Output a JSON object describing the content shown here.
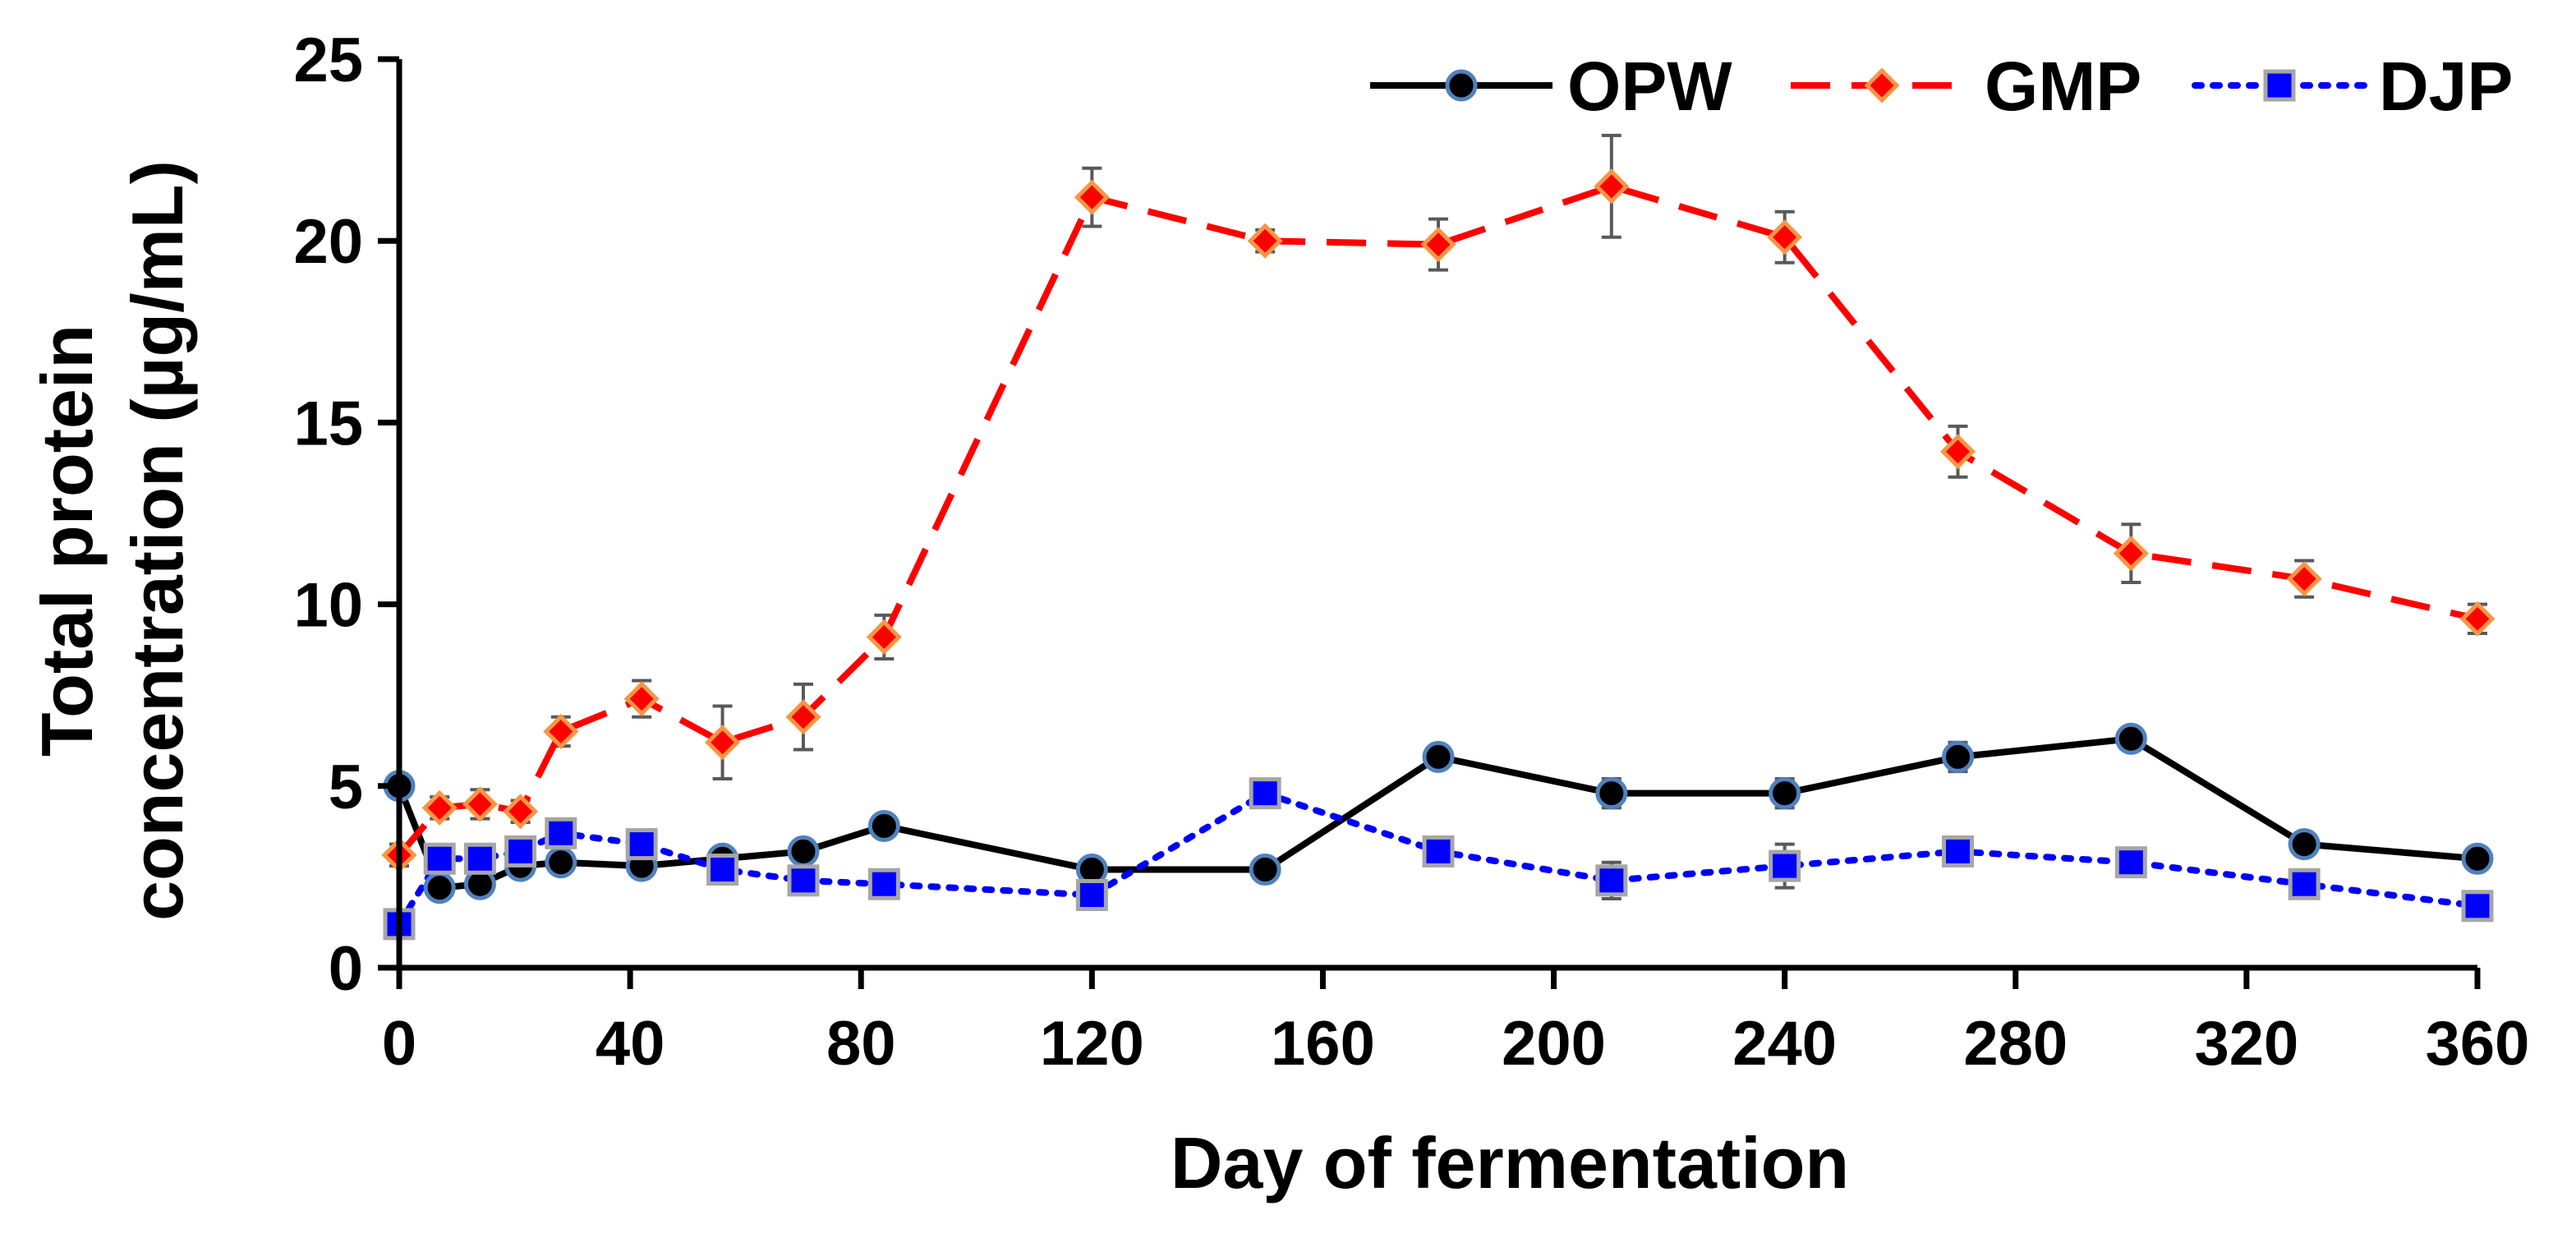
{
  "chart_data": {
    "type": "line",
    "title": "",
    "xlabel": "Day of fermentation",
    "ylabel_lines": [
      "Total protein",
      "concentration (µg/mL)"
    ],
    "xlim": [
      0,
      360
    ],
    "ylim": [
      0,
      25
    ],
    "xticks": [
      0,
      40,
      80,
      120,
      160,
      200,
      240,
      280,
      320,
      360
    ],
    "yticks": [
      0,
      5,
      10,
      15,
      20,
      25
    ],
    "grid": false,
    "legend_position": "top-right",
    "series": [
      {
        "name": "OPW",
        "color": "#000000",
        "marker": "circle",
        "marker_fill": "#000000",
        "marker_edge": "#4f81bd",
        "line_style": "solid",
        "points": [
          {
            "x": 0,
            "y": 5.0,
            "err": 0.2
          },
          {
            "x": 7,
            "y": 2.2,
            "err": 0.2
          },
          {
            "x": 14,
            "y": 2.3,
            "err": 0.2
          },
          {
            "x": 21,
            "y": 2.8,
            "err": 0.2
          },
          {
            "x": 28,
            "y": 2.9,
            "err": 0.2
          },
          {
            "x": 42,
            "y": 2.8,
            "err": 0.2
          },
          {
            "x": 56,
            "y": 3.0,
            "err": 0.2
          },
          {
            "x": 70,
            "y": 3.2,
            "err": 0.2
          },
          {
            "x": 84,
            "y": 3.9,
            "err": 0.3
          },
          {
            "x": 120,
            "y": 2.7,
            "err": 0.2
          },
          {
            "x": 150,
            "y": 2.7,
            "err": 0.2
          },
          {
            "x": 180,
            "y": 5.8,
            "err": 0.2
          },
          {
            "x": 210,
            "y": 4.8,
            "err": 0.4
          },
          {
            "x": 240,
            "y": 4.8,
            "err": 0.4
          },
          {
            "x": 270,
            "y": 5.8,
            "err": 0.4
          },
          {
            "x": 300,
            "y": 6.3,
            "err": 0.2
          },
          {
            "x": 330,
            "y": 3.4,
            "err": 0.2
          },
          {
            "x": 360,
            "y": 3.0,
            "err": 0.2
          }
        ]
      },
      {
        "name": "GMP",
        "color": "#ff0000",
        "marker": "diamond",
        "marker_fill": "#ff0000",
        "marker_edge": "#f79646",
        "line_style": "dashed",
        "points": [
          {
            "x": 0,
            "y": 3.1,
            "err": 0.3
          },
          {
            "x": 7,
            "y": 4.4,
            "err": 0.3
          },
          {
            "x": 14,
            "y": 4.5,
            "err": 0.4
          },
          {
            "x": 21,
            "y": 4.3,
            "err": 0.3
          },
          {
            "x": 28,
            "y": 6.5,
            "err": 0.4
          },
          {
            "x": 42,
            "y": 7.4,
            "err": 0.5
          },
          {
            "x": 56,
            "y": 6.2,
            "err": 1.0
          },
          {
            "x": 70,
            "y": 6.9,
            "err": 0.9
          },
          {
            "x": 84,
            "y": 9.1,
            "err": 0.6
          },
          {
            "x": 120,
            "y": 21.2,
            "err": 0.8
          },
          {
            "x": 150,
            "y": 20.0,
            "err": 0.3
          },
          {
            "x": 180,
            "y": 19.9,
            "err": 0.7
          },
          {
            "x": 210,
            "y": 21.5,
            "err": 1.4
          },
          {
            "x": 240,
            "y": 20.1,
            "err": 0.7
          },
          {
            "x": 270,
            "y": 14.2,
            "err": 0.7
          },
          {
            "x": 300,
            "y": 11.4,
            "err": 0.8
          },
          {
            "x": 330,
            "y": 10.7,
            "err": 0.5
          },
          {
            "x": 360,
            "y": 9.6,
            "err": 0.4
          }
        ]
      },
      {
        "name": "DJP",
        "color": "#0000ff",
        "marker": "square",
        "marker_fill": "#0000ff",
        "marker_edge": "#a6a6a6",
        "line_style": "dotted",
        "points": [
          {
            "x": 0,
            "y": 1.2,
            "err": 0.2
          },
          {
            "x": 7,
            "y": 3.0,
            "err": 0.2
          },
          {
            "x": 14,
            "y": 3.0,
            "err": 0.2
          },
          {
            "x": 21,
            "y": 3.2,
            "err": 0.2
          },
          {
            "x": 28,
            "y": 3.7,
            "err": 0.2
          },
          {
            "x": 42,
            "y": 3.4,
            "err": 0.2
          },
          {
            "x": 56,
            "y": 2.7,
            "err": 0.2
          },
          {
            "x": 70,
            "y": 2.4,
            "err": 0.2
          },
          {
            "x": 84,
            "y": 2.3,
            "err": 0.2
          },
          {
            "x": 120,
            "y": 2.0,
            "err": 0.2
          },
          {
            "x": 150,
            "y": 4.8,
            "err": 0.2
          },
          {
            "x": 180,
            "y": 3.2,
            "err": 0.2
          },
          {
            "x": 210,
            "y": 2.4,
            "err": 0.5
          },
          {
            "x": 240,
            "y": 2.8,
            "err": 0.6
          },
          {
            "x": 270,
            "y": 3.2,
            "err": 0.2
          },
          {
            "x": 300,
            "y": 2.9,
            "err": 0.2
          },
          {
            "x": 330,
            "y": 2.3,
            "err": 0.2
          },
          {
            "x": 360,
            "y": 1.7,
            "err": 0.2
          }
        ]
      }
    ]
  }
}
